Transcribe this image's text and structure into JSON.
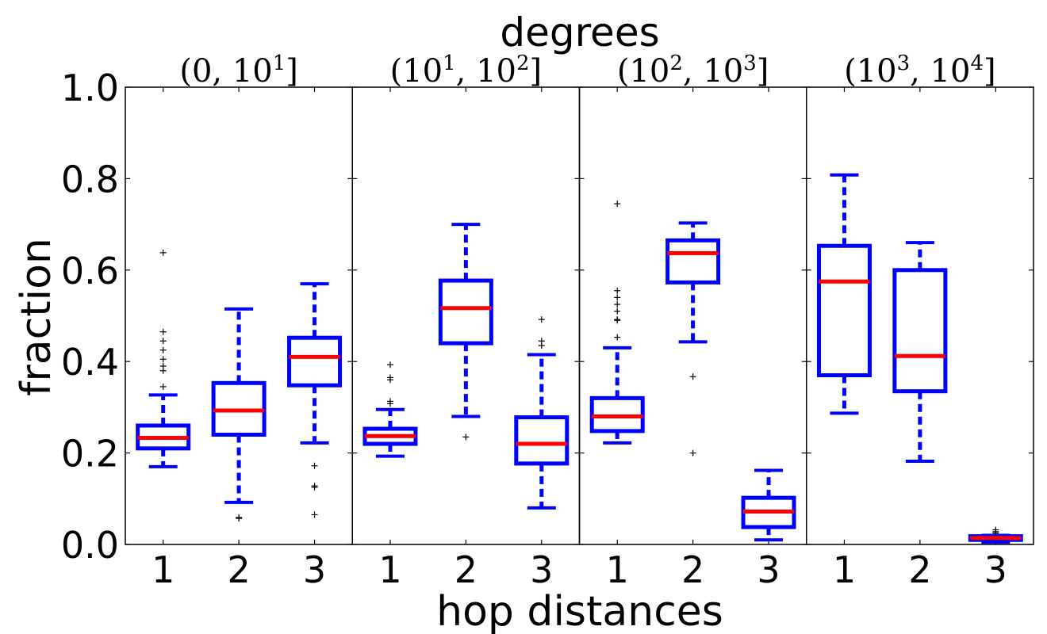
{
  "chart_data": {
    "type": "box",
    "title": "degrees",
    "xlabel": "hop distances",
    "ylabel": "fraction",
    "ylim": [
      0,
      1
    ],
    "yticks": [
      "0.0",
      "0.2",
      "0.4",
      "0.6",
      "0.8",
      "1.0"
    ],
    "grid": false,
    "colors": {
      "box": "#0000ff",
      "median": "#ff0000",
      "flier": "#000000",
      "axis": "#000000"
    },
    "panels": [
      {
        "label": "(0, 10^1]",
        "label_base_left": "(0, 10",
        "label_exp_left": "1",
        "label_base_right": "",
        "label_exp_right": "",
        "label_close": "]",
        "categories": [
          "1",
          "2",
          "3"
        ],
        "boxes": [
          {
            "x": "1",
            "whisker_low": 0.17,
            "q1": 0.21,
            "median": 0.233,
            "q3": 0.26,
            "whisker_high": 0.327,
            "outliers": [
              0.345,
              0.38,
              0.39,
              0.405,
              0.425,
              0.445,
              0.465,
              0.638
            ]
          },
          {
            "x": "2",
            "whisker_low": 0.092,
            "q1": 0.24,
            "median": 0.293,
            "q3": 0.353,
            "whisker_high": 0.515,
            "outliers": [
              0.057,
              0.059
            ]
          },
          {
            "x": "3",
            "whisker_low": 0.222,
            "q1": 0.348,
            "median": 0.41,
            "q3": 0.452,
            "whisker_high": 0.57,
            "outliers": [
              0.065,
              0.125,
              0.128,
              0.172
            ]
          }
        ]
      },
      {
        "label": "(10^1, 10^2]",
        "label_base_left": "(10",
        "label_exp_left": "1",
        "label_base_right": ", 10",
        "label_exp_right": "2",
        "label_close": "]",
        "categories": [
          "1",
          "2",
          "3"
        ],
        "boxes": [
          {
            "x": "1",
            "whisker_low": 0.193,
            "q1": 0.22,
            "median": 0.237,
            "q3": 0.253,
            "whisker_high": 0.295,
            "outliers": [
              0.308,
              0.313,
              0.36,
              0.365,
              0.393
            ]
          },
          {
            "x": "2",
            "whisker_low": 0.28,
            "q1": 0.44,
            "median": 0.517,
            "q3": 0.577,
            "whisker_high": 0.7,
            "outliers": [
              0.235
            ]
          },
          {
            "x": "3",
            "whisker_low": 0.08,
            "q1": 0.177,
            "median": 0.22,
            "q3": 0.278,
            "whisker_high": 0.415,
            "outliers": [
              0.435,
              0.445,
              0.492
            ]
          }
        ]
      },
      {
        "label": "(10^2, 10^3]",
        "label_base_left": "(10",
        "label_exp_left": "2",
        "label_base_right": ", 10",
        "label_exp_right": "3",
        "label_close": "]",
        "categories": [
          "1",
          "2",
          "3"
        ],
        "boxes": [
          {
            "x": "1",
            "whisker_low": 0.222,
            "q1": 0.248,
            "median": 0.28,
            "q3": 0.32,
            "whisker_high": 0.43,
            "outliers": [
              0.453,
              0.49,
              0.492,
              0.51,
              0.525,
              0.54,
              0.555,
              0.745
            ]
          },
          {
            "x": "2",
            "whisker_low": 0.443,
            "q1": 0.573,
            "median": 0.637,
            "q3": 0.665,
            "whisker_high": 0.703,
            "outliers": [
              0.2,
              0.367
            ]
          },
          {
            "x": "3",
            "whisker_low": 0.01,
            "q1": 0.038,
            "median": 0.072,
            "q3": 0.102,
            "whisker_high": 0.162,
            "outliers": []
          }
        ]
      },
      {
        "label": "(10^3, 10^4]",
        "label_base_left": "(10",
        "label_exp_left": "3",
        "label_base_right": ", 10",
        "label_exp_right": "4",
        "label_close": "]",
        "categories": [
          "1",
          "2",
          "3"
        ],
        "boxes": [
          {
            "x": "1",
            "whisker_low": 0.287,
            "q1": 0.37,
            "median": 0.575,
            "q3": 0.653,
            "whisker_high": 0.808,
            "outliers": []
          },
          {
            "x": "2",
            "whisker_low": 0.182,
            "q1": 0.335,
            "median": 0.412,
            "q3": 0.6,
            "whisker_high": 0.66,
            "outliers": []
          },
          {
            "x": "3",
            "whisker_low": 0.005,
            "q1": 0.01,
            "median": 0.014,
            "q3": 0.018,
            "whisker_high": 0.02,
            "outliers": [
              0.025,
              0.028,
              0.032
            ]
          }
        ]
      }
    ]
  }
}
